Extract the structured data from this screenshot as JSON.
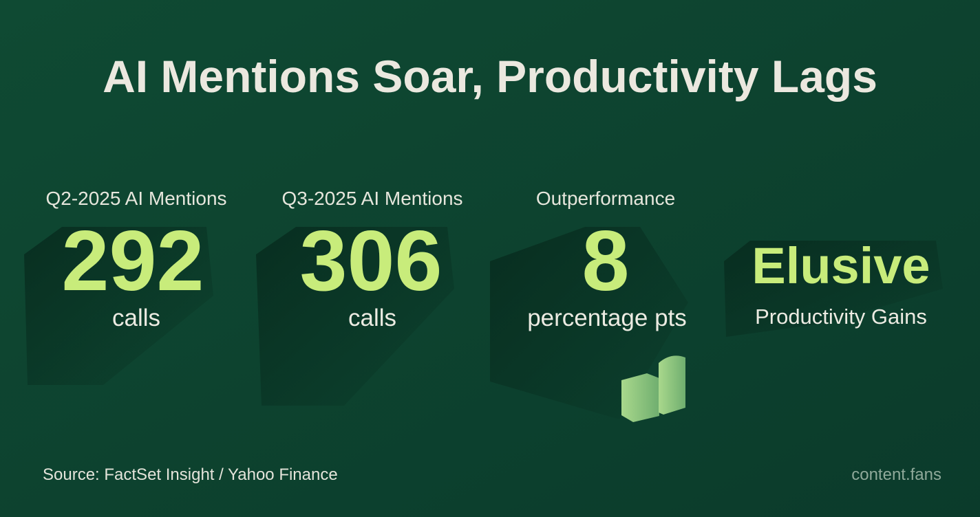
{
  "header": {
    "title": "AI Mentions Soar, Productivity Lags"
  },
  "stats": [
    {
      "label": "Q2-2025 AI Mentions",
      "value": 292,
      "unit": "calls"
    },
    {
      "label": "Q3-2025 AI Mentions",
      "value": 306,
      "unit": "calls"
    },
    {
      "label": "Outperformance",
      "value": 8,
      "unit": "percentage pts"
    },
    {
      "value": "Elusive",
      "unit": "Productivity Gains"
    }
  ],
  "footer": {
    "source": "Source: FactSet Insight / Yahoo Finance",
    "brand": "content.fans"
  }
}
